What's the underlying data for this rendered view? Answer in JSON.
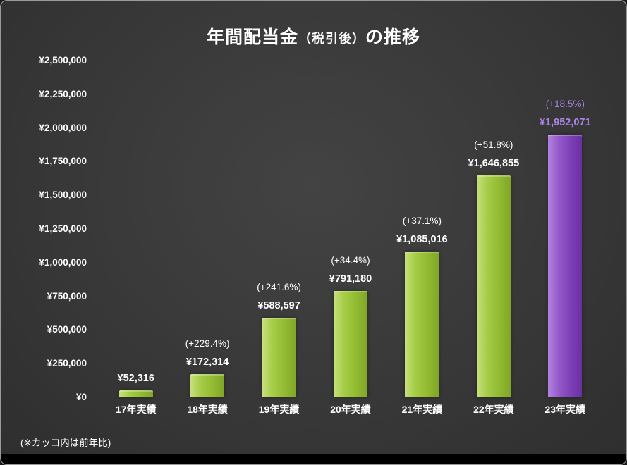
{
  "title": {
    "part1": "年間配当金",
    "part2": "（税引後）",
    "part3": "の推移"
  },
  "footnote": "(※カッコ内は前年比)",
  "colors": {
    "background": "#383838",
    "bar_green": "#9cc43c",
    "bar_purple": "#8a4cc0",
    "purple_label": "#a883e2",
    "text": "#ffffff"
  },
  "chart_data": {
    "type": "bar",
    "title": "年間配当金（税引後）の推移",
    "categories": [
      "17年実績",
      "18年実績",
      "19年実績",
      "20年実績",
      "21年実績",
      "22年実績",
      "23年実績"
    ],
    "values": [
      52316,
      172314,
      588597,
      791180,
      1085016,
      1646855,
      1952071
    ],
    "value_labels": [
      "¥52,316",
      "¥172,314",
      "¥588,597",
      "¥791,180",
      "¥1,085,016",
      "¥1,646,855",
      "¥1,952,071"
    ],
    "pct_labels": [
      "",
      "(+229.4%)",
      "(+241.6%)",
      "(+34.4%)",
      "(+37.1%)",
      "(+51.8%)",
      "(+18.5%)"
    ],
    "bar_colors": [
      "green",
      "green",
      "green",
      "green",
      "green",
      "green",
      "purple"
    ],
    "highlight_index": 6,
    "xlabel": "",
    "ylabel": "",
    "ylim": [
      0,
      2500000
    ],
    "ytick_step": 250000,
    "ytick_labels": [
      "¥0",
      "¥250,000",
      "¥500,000",
      "¥750,000",
      "¥1,000,000",
      "¥1,250,000",
      "¥1,500,000",
      "¥1,750,000",
      "¥2,000,000",
      "¥2,250,000",
      "¥2,500,000"
    ],
    "grid": false,
    "legend": false,
    "annotation": "(※カッコ内は前年比)"
  }
}
